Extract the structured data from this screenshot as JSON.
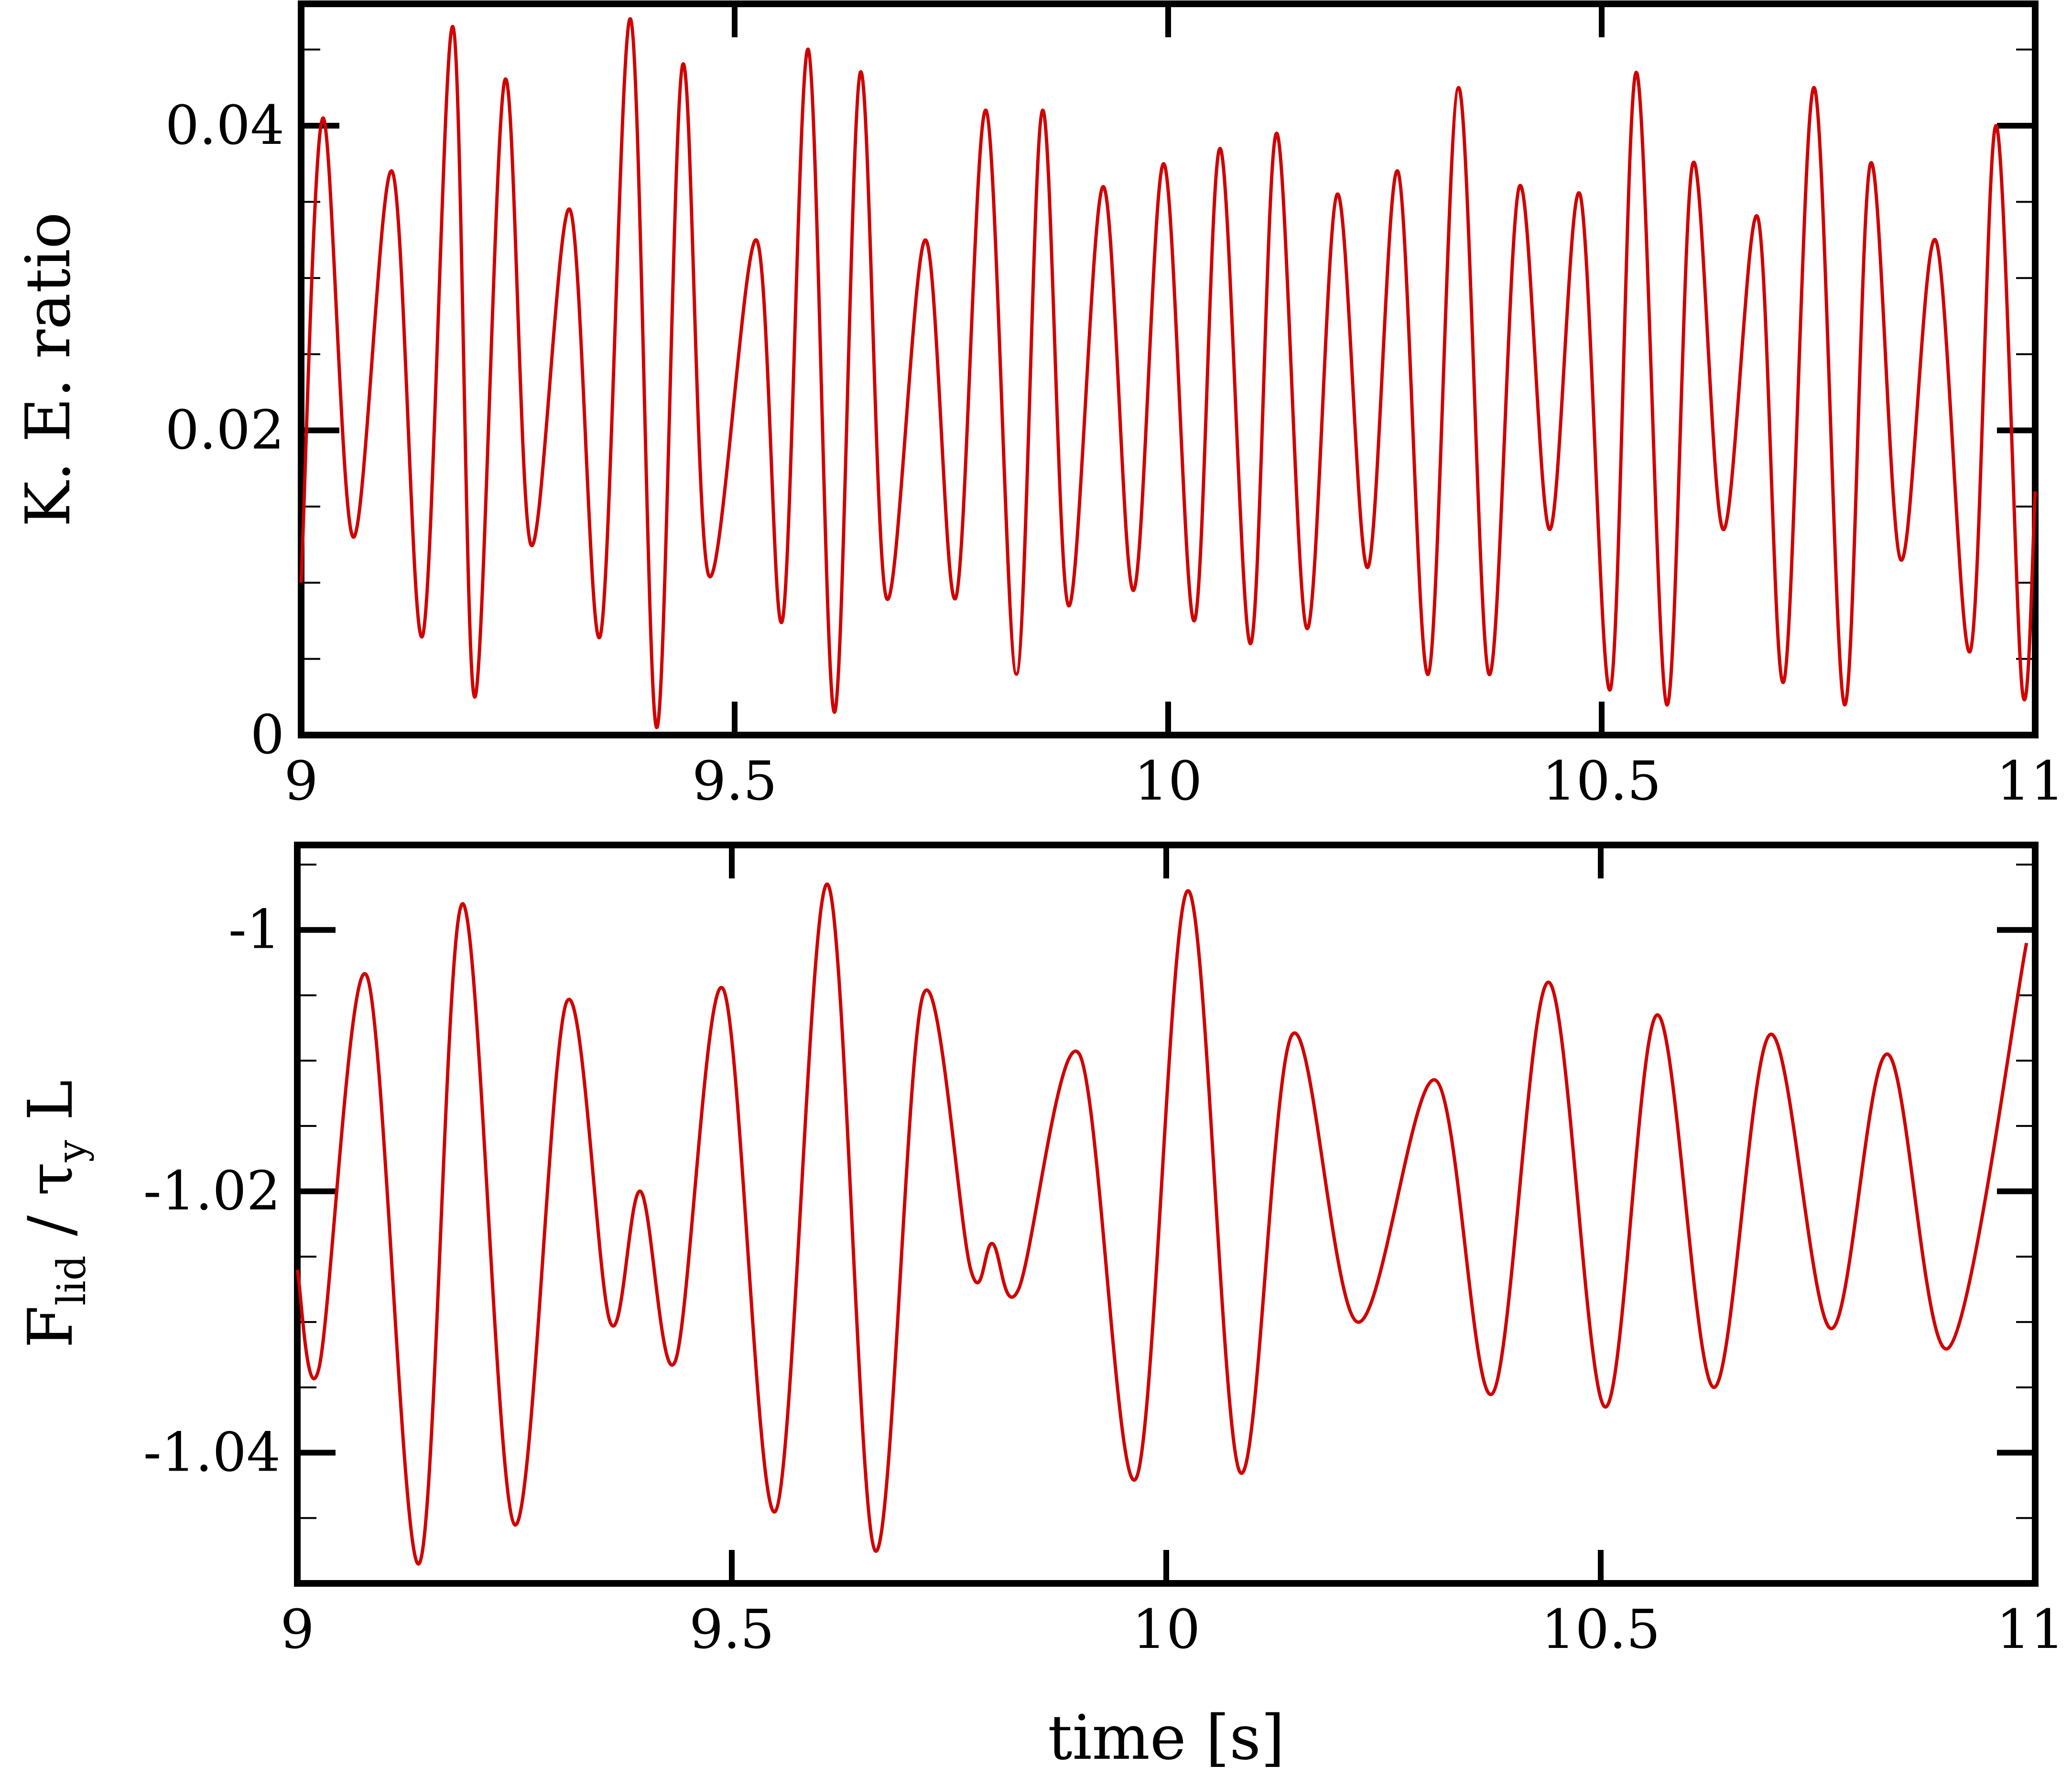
{
  "colors": {
    "series": "#d10000",
    "axes": "#000000",
    "background": "#ffffff"
  },
  "chart_data": [
    {
      "type": "line",
      "ylabel": "K. E. ratio",
      "xlabel": "",
      "xlim": [
        9,
        11
      ],
      "ylim": [
        0,
        0.048
      ],
      "xticks": [
        9,
        9.5,
        10,
        10.5,
        11
      ],
      "xtick_labels": [
        "9",
        "9.5",
        "10",
        "10.5",
        "11"
      ],
      "yticks": [
        0,
        0.02,
        0.04
      ],
      "ytick_labels": [
        "0",
        "0.02",
        "0.04"
      ],
      "yminor_step": 0.005,
      "grid": false,
      "series": [
        {
          "x": [
            9.0,
            9.025,
            9.06,
            9.105,
            9.14,
            9.175,
            9.2,
            9.235,
            9.265,
            9.31,
            9.345,
            9.38,
            9.41,
            9.44,
            9.47,
            9.525,
            9.555,
            9.585,
            9.615,
            9.645,
            9.675,
            9.72,
            9.755,
            9.79,
            9.825,
            9.855,
            9.885,
            9.925,
            9.96,
            9.995,
            10.03,
            10.06,
            10.095,
            10.125,
            10.16,
            10.195,
            10.23,
            10.265,
            10.3,
            10.335,
            10.37,
            10.405,
            10.44,
            10.475,
            10.51,
            10.54,
            10.575,
            10.605,
            10.64,
            10.68,
            10.71,
            10.745,
            10.78,
            10.81,
            10.845,
            10.885,
            10.925,
            10.955,
            10.985,
            11.0
          ],
          "values": [
            0.01,
            0.0405,
            0.013,
            0.037,
            0.0065,
            0.0465,
            0.0025,
            0.043,
            0.0125,
            0.0345,
            0.0065,
            0.047,
            0.0005,
            0.044,
            0.0105,
            0.0325,
            0.0075,
            0.045,
            0.0015,
            0.0435,
            0.009,
            0.0325,
            0.009,
            0.041,
            0.004,
            0.041,
            0.0085,
            0.036,
            0.0095,
            0.0375,
            0.0075,
            0.0385,
            0.006,
            0.0395,
            0.007,
            0.0355,
            0.011,
            0.037,
            0.004,
            0.0425,
            0.004,
            0.036,
            0.0135,
            0.0355,
            0.003,
            0.0435,
            0.002,
            0.0375,
            0.0135,
            0.034,
            0.0035,
            0.0425,
            0.002,
            0.0375,
            0.0115,
            0.0325,
            0.0055,
            0.04,
            0.003,
            0.016
          ]
        }
      ]
    },
    {
      "type": "line",
      "ylabel": "F",
      "ylabel_sub": "lid",
      "ylabel_mid": " / τ",
      "ylabel_sub2": "y",
      "ylabel_end": " L",
      "xlabel": "time [s]",
      "xlim": [
        9,
        11
      ],
      "ylim": [
        -1.05,
        -0.9935
      ],
      "xticks": [
        9,
        9.5,
        10,
        10.5,
        11
      ],
      "xtick_labels": [
        "9",
        "9.5",
        "10",
        "10.5",
        "11"
      ],
      "yticks": [
        -1.04,
        -1.02,
        -1
      ],
      "ytick_labels": [
        "-1.04",
        "-1.02",
        "-1"
      ],
      "yminor_step": 0.005,
      "grid": false,
      "series": [
        {
          "x": [
            9.0,
            9.025,
            9.08,
            9.14,
            9.19,
            9.25,
            9.31,
            9.36,
            9.395,
            9.435,
            9.49,
            9.55,
            9.61,
            9.665,
            9.72,
            9.775,
            9.8,
            9.83,
            9.9,
            9.965,
            10.025,
            10.085,
            10.145,
            10.22,
            10.31,
            10.375,
            10.44,
            10.505,
            10.565,
            10.63,
            10.695,
            10.765,
            10.83,
            10.9,
            10.99
          ],
          "values": [
            -1.026,
            -1.0335,
            -1.0035,
            -1.0485,
            -0.998,
            -1.0455,
            -1.0055,
            -1.03,
            -1.02,
            -1.033,
            -1.0045,
            -1.0445,
            -0.9965,
            -1.0475,
            -1.005,
            -1.026,
            -1.024,
            -1.0275,
            -1.0095,
            -1.042,
            -0.997,
            -1.0415,
            -1.008,
            -1.03,
            -1.0115,
            -1.0355,
            -1.004,
            -1.0365,
            -1.0065,
            -1.035,
            -1.008,
            -1.0305,
            -1.0095,
            -1.032,
            -1.001
          ]
        }
      ]
    }
  ]
}
